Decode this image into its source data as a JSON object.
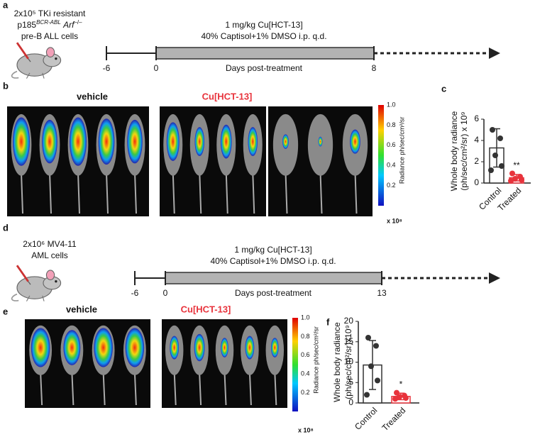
{
  "panel_labels": [
    "a",
    "b",
    "c",
    "d",
    "e",
    "f"
  ],
  "timelines": [
    {
      "cells": [
        "2x10⁵ TKi resistant",
        [
          {
            "t": "p185"
          },
          {
            "t": "BCR-ABL",
            "sup": true,
            "italic": true
          },
          {
            "t": " "
          },
          {
            "t": "Arf",
            "italic": true
          },
          {
            "t": "–/–",
            "sup": true
          }
        ],
        "pre-B ALL cells"
      ],
      "treatment": [
        "1 mg/kg Cu[HCT-13]",
        "40% Captisol+1% DMSO i.p. q.d."
      ],
      "ticks": [
        "-6",
        "0",
        "8"
      ],
      "axis_label": "Days post-treatment"
    },
    {
      "cells": [
        "2x10⁶ MV4-11",
        "AML cells"
      ],
      "treatment": [
        "1 mg/kg Cu[HCT-13]",
        "40% Captisol+1% DMSO i.p. q.d."
      ],
      "ticks": [
        "-6",
        "0",
        "13"
      ],
      "axis_label": "Days post-treatment"
    }
  ],
  "images": [
    {
      "groups": [
        "vehicle",
        "Cu[HCT-13]"
      ],
      "colorbar": {
        "ticks": [
          "1.0",
          "0.8",
          "0.6",
          "0.4",
          "0.2"
        ],
        "label": "Radiance ph/sec/cm²/sr",
        "unit": "x 10⁸"
      }
    },
    {
      "groups": [
        "vehicle",
        "Cu[HCT-13]"
      ],
      "colorbar": {
        "ticks": [
          "1.0",
          "0.8",
          "0.6",
          "0.4",
          "0.2"
        ],
        "label": "Radiance ph/sec/cm²/sr",
        "unit": "x 10⁸"
      }
    }
  ],
  "chart_data": [
    {
      "type": "bar",
      "ylabel": [
        "Whole body radiance",
        "(ph/sec/cm²/sr) x 10⁹"
      ],
      "categories": [
        "Control",
        "Treated"
      ],
      "values": [
        3.3,
        0.5
      ],
      "errors": [
        1.8,
        0.3
      ],
      "points": [
        [
          5.0,
          4.2,
          2.6,
          1.6,
          1.2
        ],
        [
          0.9,
          0.6,
          0.4,
          0.3,
          0.2
        ]
      ],
      "colors": [
        "#333333",
        "#e8333c"
      ],
      "ylim": [
        0,
        6
      ],
      "yticks": [
        0,
        2,
        4,
        6
      ],
      "annotation": {
        "text": "**",
        "category": 1
      }
    },
    {
      "type": "bar",
      "ylabel": [
        "Whole body radiance",
        "(ph/sec/cm²/sr)x10⁹"
      ],
      "categories": [
        "Control",
        "Treated"
      ],
      "values": [
        9.3,
        1.6
      ],
      "errors": [
        6.0,
        0.8
      ],
      "points": [
        [
          16,
          14,
          9,
          5.5,
          2
        ],
        [
          2.5,
          1.8,
          1.5,
          1.2,
          1.0
        ]
      ],
      "colors": [
        "#333333",
        "#e8333c"
      ],
      "ylim": [
        0,
        20
      ],
      "yticks": [
        0,
        5,
        10,
        15,
        20
      ],
      "annotation": {
        "text": "*",
        "category": 1
      }
    }
  ]
}
